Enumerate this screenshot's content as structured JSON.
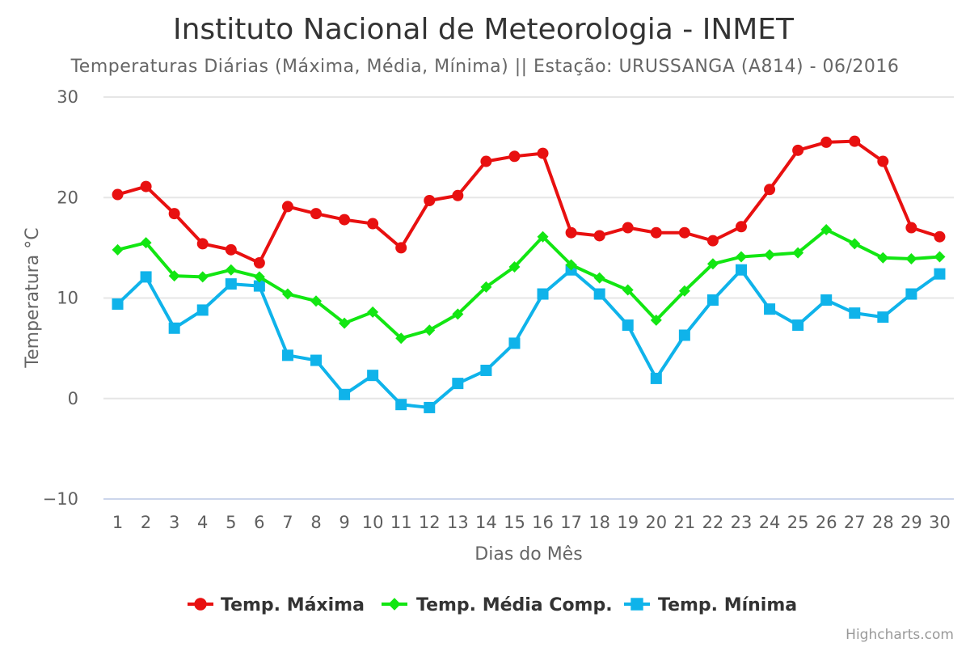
{
  "chart_data": {
    "type": "line",
    "title": "Instituto Nacional de Meteorologia - INMET",
    "subtitle": "Temperaturas Diárias (Máxima, Média, Mínima) || Estação: URUSSANGA (A814) - 06/2016",
    "xlabel": "Dias do Mês",
    "ylabel": "Temperatura °C",
    "ylim": [
      -10,
      30
    ],
    "yticks": [
      30,
      20,
      10,
      0,
      -10
    ],
    "ytick_labels": [
      "30",
      "20",
      "10",
      "0",
      "−10"
    ],
    "categories": [
      "1",
      "2",
      "3",
      "4",
      "5",
      "6",
      "7",
      "8",
      "9",
      "10",
      "11",
      "12",
      "13",
      "14",
      "15",
      "16",
      "17",
      "18",
      "19",
      "20",
      "21",
      "22",
      "23",
      "24",
      "25",
      "26",
      "27",
      "28",
      "29",
      "30"
    ],
    "grid": true,
    "legend_position": "bottom-center",
    "series": [
      {
        "name": "Temp. Máxima",
        "color": "#e81010",
        "marker": "circle",
        "values": [
          20.3,
          21.1,
          18.4,
          15.4,
          14.8,
          13.5,
          19.1,
          18.4,
          17.8,
          17.4,
          15.0,
          19.7,
          20.2,
          23.6,
          24.1,
          24.4,
          16.5,
          16.2,
          17.0,
          16.5,
          16.5,
          15.7,
          17.1,
          20.8,
          24.7,
          25.5,
          25.6,
          23.6,
          17.0,
          16.1
        ]
      },
      {
        "name": "Temp. Média Comp.",
        "color": "#12e612",
        "marker": "diamond",
        "values": [
          14.8,
          15.5,
          12.2,
          12.1,
          12.8,
          12.1,
          10.4,
          9.7,
          7.5,
          8.6,
          6.0,
          6.8,
          8.4,
          11.1,
          13.1,
          16.1,
          13.3,
          12.0,
          10.8,
          7.8,
          10.7,
          13.4,
          14.1,
          14.3,
          14.5,
          16.8,
          15.4,
          14.0,
          13.9,
          14.1
        ]
      },
      {
        "name": "Temp. Mínima",
        "color": "#0fb3ea",
        "marker": "square",
        "values": [
          9.4,
          12.1,
          7.0,
          8.8,
          11.4,
          11.2,
          4.3,
          3.8,
          0.4,
          2.3,
          -0.6,
          -0.9,
          1.5,
          2.8,
          5.5,
          10.4,
          12.8,
          10.4,
          7.3,
          2.0,
          6.3,
          9.8,
          12.8,
          8.9,
          7.3,
          9.8,
          8.5,
          8.1,
          10.4,
          12.4
        ]
      }
    ]
  },
  "credits": "Highcharts.com"
}
